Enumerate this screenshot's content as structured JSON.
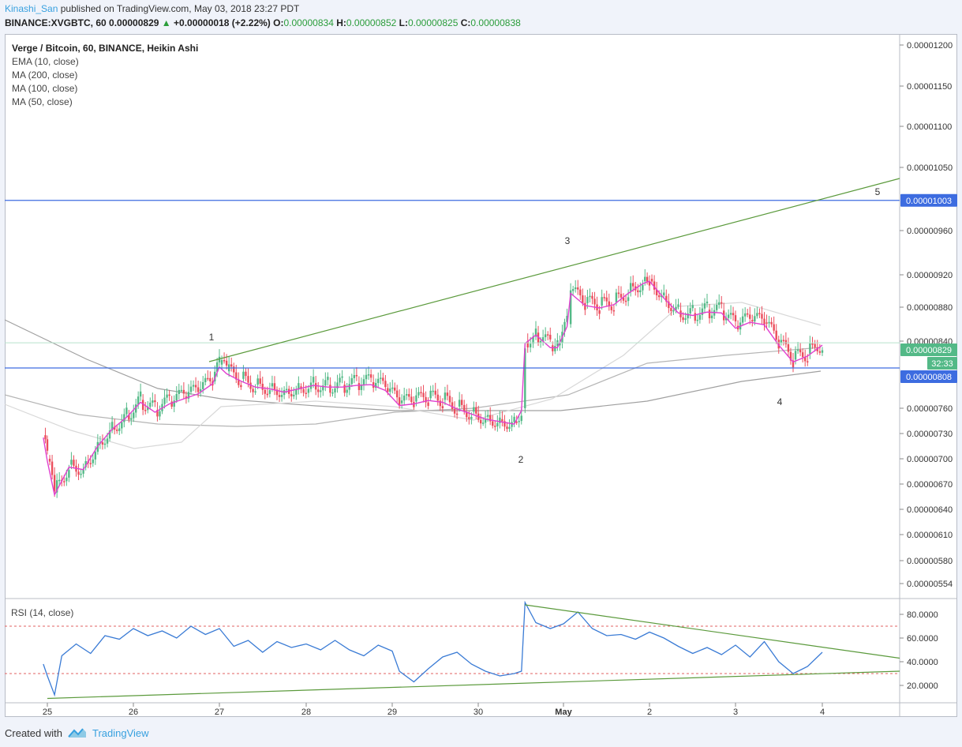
{
  "header": {
    "author": "Kinashi_San",
    "published": "published on TradingView.com, May 03, 2018 23:27 PDT",
    "symbol": "BINANCE:XVGBTC, 60",
    "last": "0.00000829",
    "change": "+0.00000018 (+2.22%)",
    "o_label": "O:",
    "o": "0.00000834",
    "h_label": "H:",
    "h": "0.00000852",
    "l_label": "L:",
    "l": "0.00000825",
    "c_label": "C:",
    "c": "0.00000838"
  },
  "legend": {
    "title": "Verge / Bitcoin, 60, BINANCE, Heikin Ashi",
    "ema10": "EMA (10, close)",
    "ma200": "MA (200, close)",
    "ma100": "MA (100, close)",
    "ma50": "MA (50, close)"
  },
  "rsi_label": "RSI (14, close)",
  "footer": {
    "created": "Created with",
    "brand": "TradingView"
  },
  "colors": {
    "up": "#53b987",
    "down": "#eb4d5c",
    "ema": "#e040d0",
    "level": "#3d6ce0",
    "trend": "#5b9a3c",
    "rsi": "#3a7bd5"
  },
  "chart_data": [
    {
      "type": "candlestick",
      "title": "Verge / Bitcoin, 60, BINANCE, Heikin Ashi",
      "x_ticks": [
        "25",
        "26",
        "27",
        "28",
        "29",
        "30",
        "May",
        "2",
        "3",
        "4"
      ],
      "y_ticks": [
        "0.00001200",
        "0.00001150",
        "0.00001100",
        "0.00001050",
        "0.00000960",
        "0.00000920",
        "0.00000880",
        "0.00000840",
        "0.00000760",
        "0.00000730",
        "0.00000700",
        "0.00000670",
        "0.00000640",
        "0.00000610",
        "0.00000580",
        "0.00000554"
      ],
      "price_tags": [
        {
          "text": "0.00001003",
          "value": 1.003e-05,
          "color": "#3d6ce0"
        },
        {
          "text": "0.00000829",
          "value": 8.29e-06,
          "color": "#53b987"
        },
        {
          "text": "32:33",
          "color": "#53b987"
        },
        {
          "text": "0.00000808",
          "value": 8.08e-06,
          "color": "#3d6ce0"
        }
      ],
      "horizontal_levels": [
        1.003e-05,
        8.08e-06
      ],
      "wave_labels": [
        "1",
        "2",
        "3",
        "4",
        "5"
      ],
      "close_series": [
        [
          "24 23:00",
          7.28e-06
        ],
        [
          "25 00:00",
          7e-06
        ],
        [
          "25 02:00",
          6.6e-06
        ],
        [
          "25 06:00",
          6.93e-06
        ],
        [
          "25 10:00",
          6.9e-06
        ],
        [
          "25 14:00",
          7.18e-06
        ],
        [
          "25 18:00",
          7.38e-06
        ],
        [
          "25 22:00",
          7.52e-06
        ],
        [
          "26 02:00",
          7.7e-06
        ],
        [
          "26 06:00",
          7.58e-06
        ],
        [
          "26 10:00",
          7.68e-06
        ],
        [
          "26 14:00",
          7.74e-06
        ],
        [
          "26 18:00",
          7.8e-06
        ],
        [
          "26 22:00",
          7.92e-06
        ],
        [
          "27 00:00",
          8.12e-06
        ],
        [
          "27 02:00",
          8.04e-06
        ],
        [
          "27 06:00",
          7.95e-06
        ],
        [
          "27 10:00",
          7.88e-06
        ],
        [
          "27 14:00",
          7.86e-06
        ],
        [
          "27 18:00",
          7.82e-06
        ],
        [
          "27 22:00",
          7.86e-06
        ],
        [
          "28 02:00",
          7.9e-06
        ],
        [
          "28 06:00",
          7.88e-06
        ],
        [
          "28 10:00",
          7.88e-06
        ],
        [
          "28 14:00",
          7.9e-06
        ],
        [
          "28 18:00",
          7.91e-06
        ],
        [
          "28 22:00",
          7.84e-06
        ],
        [
          "29 02:00",
          7.66e-06
        ],
        [
          "29 06:00",
          7.68e-06
        ],
        [
          "29 10:00",
          7.72e-06
        ],
        [
          "29 14:00",
          7.7e-06
        ],
        [
          "29 18:00",
          7.62e-06
        ],
        [
          "29 22:00",
          7.56e-06
        ],
        [
          "30 02:00",
          7.5e-06
        ],
        [
          "30 06:00",
          7.47e-06
        ],
        [
          "30 10:00",
          7.44e-06
        ],
        [
          "30 12:00",
          7.6e-06
        ],
        [
          "30 13:00",
          8.4e-06
        ],
        [
          "30 16:00",
          8.5e-06
        ],
        [
          "30 20:00",
          8.35e-06
        ],
        [
          "30 22:00",
          8.35e-06
        ],
        [
          "01 01:00",
          8.6e-06
        ],
        [
          "01 02:00",
          9e-06
        ],
        [
          "01 06:00",
          8.85e-06
        ],
        [
          "01 10:00",
          8.82e-06
        ],
        [
          "01 14:00",
          8.86e-06
        ],
        [
          "01 18:00",
          9e-06
        ],
        [
          "01 22:00",
          9.12e-06
        ],
        [
          "02 00:00",
          9.15e-06
        ],
        [
          "02 04:00",
          8.94e-06
        ],
        [
          "02 08:00",
          8.76e-06
        ],
        [
          "02 12:00",
          8.73e-06
        ],
        [
          "02 16:00",
          8.77e-06
        ],
        [
          "02 20:00",
          8.76e-06
        ],
        [
          "03 00:00",
          8.58e-06
        ],
        [
          "03 04:00",
          8.65e-06
        ],
        [
          "03 08:00",
          8.62e-06
        ],
        [
          "03 12:00",
          8.38e-06
        ],
        [
          "03 16:00",
          8.18e-06
        ],
        [
          "03 20:00",
          8.25e-06
        ],
        [
          "04 00:00",
          8.38e-06
        ]
      ]
    },
    {
      "type": "line",
      "title": "RSI (14, close)",
      "y_ticks": [
        "80.0000",
        "60.0000",
        "40.0000",
        "20.0000"
      ],
      "bands": [
        70,
        30
      ],
      "series": [
        {
          "name": "RSI (14, close)",
          "x": [
            "24 23:00",
            "25 00:00",
            "25 02:00",
            "25 04:00",
            "25 08:00",
            "25 12:00",
            "25 16:00",
            "25 20:00",
            "26 00:00",
            "26 04:00",
            "26 08:00",
            "26 12:00",
            "26 16:00",
            "26 20:00",
            "27 00:00",
            "27 04:00",
            "27 08:00",
            "27 12:00",
            "27 16:00",
            "27 20:00",
            "28 00:00",
            "28 04:00",
            "28 08:00",
            "28 12:00",
            "28 16:00",
            "28 20:00",
            "29 00:00",
            "29 02:00",
            "29 06:00",
            "29 10:00",
            "29 14:00",
            "29 18:00",
            "29 22:00",
            "30 02:00",
            "30 06:00",
            "30 10:00",
            "30 12:00",
            "30 13:00",
            "30 16:00",
            "30 20:00",
            "01 00:00",
            "01 04:00",
            "01 08:00",
            "01 12:00",
            "01 16:00",
            "01 20:00",
            "02 00:00",
            "02 04:00",
            "02 08:00",
            "02 12:00",
            "02 16:00",
            "02 20:00",
            "03 00:00",
            "03 04:00",
            "03 08:00",
            "03 12:00",
            "03 16:00",
            "03 20:00",
            "04 00:00"
          ],
          "values": [
            38,
            28,
            12,
            45,
            55,
            47,
            62,
            59,
            68,
            62,
            66,
            60,
            70,
            63,
            68,
            53,
            58,
            48,
            57,
            52,
            55,
            50,
            58,
            50,
            45,
            54,
            49,
            32,
            23,
            34,
            44,
            48,
            38,
            32,
            28,
            30,
            32,
            90,
            73,
            68,
            72,
            82,
            68,
            62,
            63,
            59,
            65,
            60,
            53,
            47,
            52,
            46,
            54,
            44,
            57,
            40,
            30,
            36,
            48
          ]
        }
      ],
      "trendlines": [
        {
          "from": [
            "25 00:00",
            9
          ],
          "to": [
            "04 12:00",
            32
          ]
        },
        {
          "from": [
            "30 13:00",
            88
          ],
          "to": [
            "04 12:00",
            43
          ]
        }
      ]
    }
  ]
}
